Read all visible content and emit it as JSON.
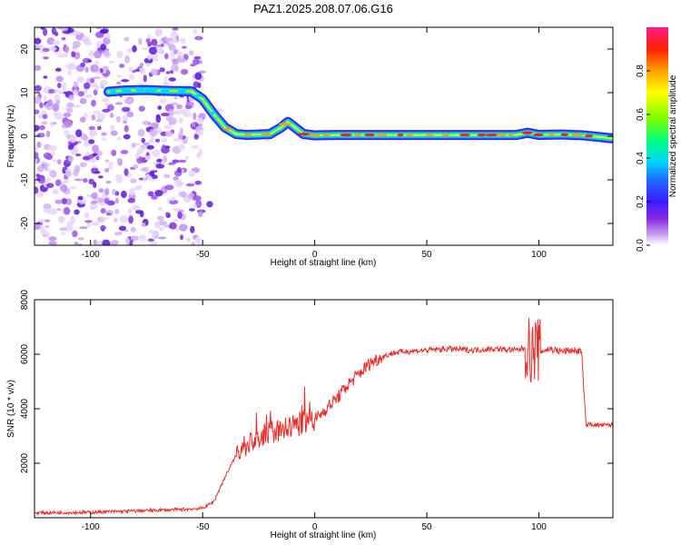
{
  "title": "PAZ1.2025.208.07.06.G16",
  "chart_data": [
    {
      "type": "heatmap",
      "xlabel": "Height of straight line (km)",
      "ylabel": "Frequency (Hz)",
      "xlim": [
        -125,
        133
      ],
      "ylim": [
        -25,
        25
      ],
      "xticks": [
        -100,
        -50,
        0,
        50,
        100
      ],
      "yticks": [
        -20,
        -10,
        0,
        10,
        20
      ],
      "colorbar": {
        "label": "Normalized spectral amplitude",
        "range": [
          0,
          1
        ],
        "ticks": [
          "0.0",
          "0.2",
          "0.4",
          "0.6",
          "0.8"
        ],
        "colormap": [
          "#ffffff",
          "#c8a0f0",
          "#8a2be2",
          "#3b1cff",
          "#1e6bff",
          "#00d5ff",
          "#00ff80",
          "#7cff00",
          "#ffff00",
          "#ffa000",
          "#ff2000",
          "#ff1a8c"
        ]
      },
      "ridge": {
        "x": [
          -92,
          -85,
          -75,
          -65,
          -55,
          -50,
          -45,
          -40,
          -35,
          -30,
          -20,
          -15,
          -12,
          -10,
          -5,
          0,
          10,
          30,
          50,
          70,
          90,
          95,
          100,
          110,
          120,
          133
        ],
        "freq": [
          10.2,
          10.5,
          10.6,
          10.4,
          10.3,
          8.5,
          5,
          2,
          0.5,
          0.3,
          0.5,
          2,
          3.3,
          2.5,
          0.5,
          0.2,
          0.3,
          0.3,
          0.3,
          0.3,
          0.3,
          0.8,
          0.3,
          0.4,
          0.2,
          -0.5
        ]
      },
      "noise_region_x": [
        -125,
        -50
      ]
    },
    {
      "type": "line",
      "xlabel": "Height of straight line (km)",
      "ylabel": "SNR (10 * v/v)",
      "xlim": [
        -125,
        133
      ],
      "ylim": [
        0,
        8000
      ],
      "xticks": [
        -100,
        -50,
        0,
        50,
        100
      ],
      "yticks": [
        2000,
        4000,
        6000,
        8000
      ],
      "series": [
        {
          "color": "#e8302c",
          "x": [
            -125,
            -100,
            -60,
            -50,
            -45,
            -40,
            -35,
            -32,
            -30,
            -25,
            -20,
            -15,
            -10,
            -5,
            0,
            5,
            10,
            15,
            20,
            25,
            30,
            35,
            40,
            50,
            60,
            70,
            80,
            90,
            95,
            97,
            99,
            100,
            105,
            110,
            115,
            119,
            121,
            123,
            125,
            133
          ],
          "values": [
            180,
            200,
            300,
            350,
            600,
            1500,
            2300,
            2600,
            2700,
            2900,
            3100,
            3200,
            3350,
            3500,
            3600,
            4000,
            4400,
            4900,
            5300,
            5700,
            5900,
            6050,
            6100,
            6150,
            6200,
            6150,
            6200,
            6150,
            6250,
            6000,
            6300,
            6100,
            6200,
            6100,
            6150,
            6100,
            3400,
            3450,
            3400,
            3400
          ]
        }
      ]
    }
  ]
}
